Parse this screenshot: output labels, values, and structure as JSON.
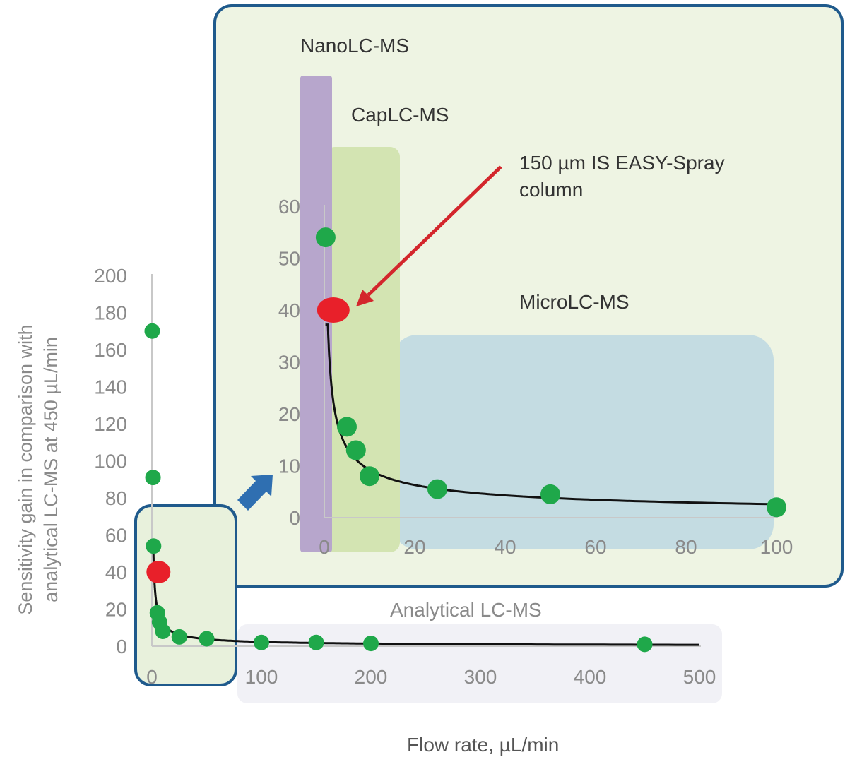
{
  "chart_data": [
    {
      "type": "scatter",
      "role": "main",
      "title": "",
      "xlabel": "Flow rate, µL/min",
      "ylabel_line1": "Sensitivity gain in comparison with",
      "ylabel_line2": "analytical LC-MS at 450 µL/min",
      "xlim": [
        0,
        500
      ],
      "ylim": [
        0,
        200
      ],
      "x_ticks": [
        0,
        100,
        200,
        300,
        400,
        500
      ],
      "y_ticks": [
        0,
        20,
        40,
        60,
        80,
        100,
        120,
        140,
        160,
        180,
        200
      ],
      "grid": false,
      "region_labels": {
        "analytical": "Analytical LC-MS"
      },
      "series": [
        {
          "color": "#1fa84a",
          "points": [
            {
              "x": 0.3,
              "y": 170
            },
            {
              "x": 1,
              "y": 91
            },
            {
              "x": 1.5,
              "y": 54
            },
            {
              "x": 5,
              "y": 18
            },
            {
              "x": 7,
              "y": 13
            },
            {
              "x": 10,
              "y": 8
            },
            {
              "x": 25,
              "y": 5
            },
            {
              "x": 50,
              "y": 4
            },
            {
              "x": 100,
              "y": 2
            },
            {
              "x": 150,
              "y": 2
            },
            {
              "x": 200,
              "y": 1.5
            },
            {
              "x": 450,
              "y": 1
            }
          ]
        },
        {
          "color": "#e8202a",
          "points": [
            {
              "x": 6,
              "y": 40
            }
          ]
        }
      ],
      "fit_curve_color": "#111111"
    },
    {
      "type": "scatter",
      "role": "inset",
      "title": "",
      "xlim": [
        0,
        100
      ],
      "ylim": [
        0,
        60
      ],
      "x_ticks": [
        0,
        20,
        40,
        60,
        80,
        100
      ],
      "y_ticks": [
        0,
        10,
        20,
        30,
        40,
        50,
        60
      ],
      "grid": false,
      "region_labels": {
        "nano": "NanoLC-MS",
        "cap": "CapLC-MS",
        "micro": "MicroLC-MS"
      },
      "annotation_line1": "150 µm IS EASY-Spray",
      "annotation_line2": "column",
      "series": [
        {
          "color": "#1fa84a",
          "points": [
            {
              "x": 0.3,
              "y": 54
            },
            {
              "x": 5,
              "y": 17.5
            },
            {
              "x": 7,
              "y": 13
            },
            {
              "x": 10,
              "y": 8
            },
            {
              "x": 25,
              "y": 5.5
            },
            {
              "x": 50,
              "y": 4.5
            },
            {
              "x": 100,
              "y": 2
            }
          ]
        },
        {
          "color": "#e8202a",
          "points": [
            {
              "x": 2,
              "y": 40
            }
          ]
        }
      ],
      "fit_curve_color": "#111111"
    }
  ],
  "colors": {
    "inset_fill": "#eef4e3",
    "inset_border": "#1f5a8c",
    "nano_band": "#b7a6cc",
    "cap_band": "#d3e4b2",
    "micro_band": "#c4dce2",
    "analytical_band": "#f1f1f6",
    "axis": "#c8c8c8",
    "tick_text": "#8a8a8a",
    "label_text": "#333333",
    "zoom_arrow": "#2f6fb1",
    "callout_arrow": "#d3262c"
  }
}
